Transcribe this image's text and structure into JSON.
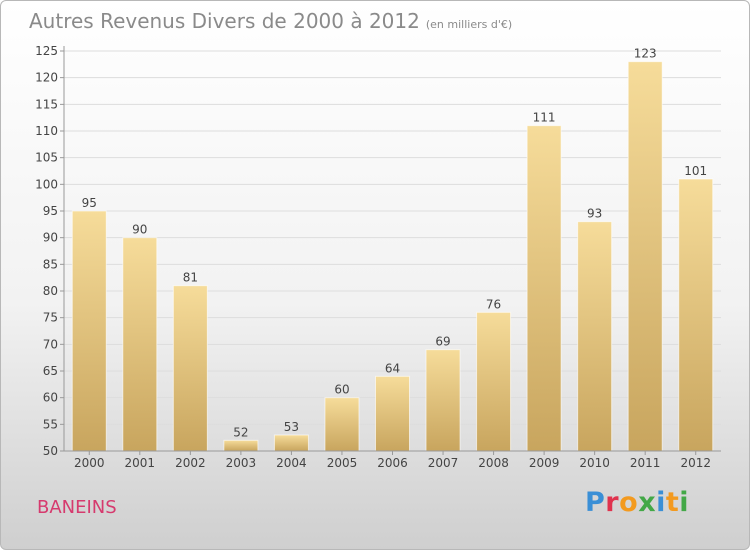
{
  "chart_data": {
    "type": "bar",
    "title": "Autres Revenus Divers de 2000 à 2012",
    "subtitle": "(en milliers d'€)",
    "xlabel": "",
    "ylabel": "",
    "categories": [
      "2000",
      "2001",
      "2002",
      "2003",
      "2004",
      "2005",
      "2006",
      "2007",
      "2008",
      "2009",
      "2010",
      "2011",
      "2012"
    ],
    "values": [
      95,
      90,
      81,
      52,
      53,
      60,
      64,
      69,
      76,
      111,
      93,
      123,
      101
    ],
    "ylim": [
      50,
      125
    ],
    "yticks": [
      50,
      55,
      60,
      65,
      70,
      75,
      80,
      85,
      90,
      95,
      100,
      105,
      110,
      115,
      120,
      125
    ],
    "grid": true,
    "colors": {
      "bar_light": "#f6dc9a",
      "bar_dark": "#c8a55e",
      "axis": "#999999",
      "grid": "#dddddd",
      "text": "#444444"
    }
  },
  "footer": {
    "commune": "BANEINS",
    "brand_letters": [
      {
        "ch": "P",
        "color": "#3a8fd6"
      },
      {
        "ch": "r",
        "color": "#e0334e"
      },
      {
        "ch": "o",
        "color": "#f39a1f"
      },
      {
        "ch": "x",
        "color": "#43a847"
      },
      {
        "ch": "i",
        "color": "#3a8fd6"
      },
      {
        "ch": "t",
        "color": "#f39a1f"
      },
      {
        "ch": "i",
        "color": "#43a847"
      }
    ]
  }
}
